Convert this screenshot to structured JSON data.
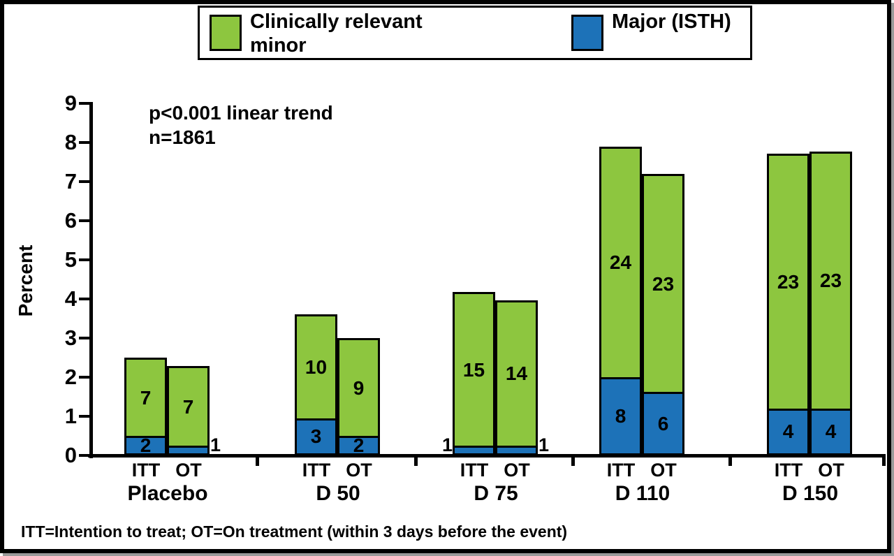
{
  "legend": {
    "minor_label": "Clinically relevant\nminor",
    "major_label": "Major (ISTH)"
  },
  "colors": {
    "minor_green": "#8DC63F",
    "major_blue": "#1D72B8",
    "axis_black": "#000000"
  },
  "annotation": {
    "line1": "p<0.001 linear trend",
    "line2": "n=1861"
  },
  "y_axis": {
    "label": "Percent",
    "ticks": [
      "0",
      "1",
      "2",
      "3",
      "4",
      "5",
      "6",
      "7",
      "8",
      "9"
    ]
  },
  "footnote": "ITT=Intention to treat; OT=On treatment (within 3 days before the event)",
  "chart_data": {
    "type": "bar",
    "stacked": true,
    "title": "",
    "xlabel": "",
    "ylabel": "Percent",
    "ylim": [
      0,
      9
    ],
    "grid": false,
    "legend_position": "top",
    "series": [
      {
        "name": "Major (ISTH)",
        "color": "#1D72B8"
      },
      {
        "name": "Clinically relevant minor",
        "color": "#8DC63F"
      }
    ],
    "annotations": [
      "p<0.001 linear trend",
      "n=1861"
    ],
    "groups": [
      {
        "label": "Placebo",
        "bars": [
          {
            "sublabel": "ITT",
            "major_pct": 0.5,
            "total_pct": 2.5,
            "major_count": "2",
            "minor_count": "7",
            "major_count_pos": "inside"
          },
          {
            "sublabel": "OT",
            "major_pct": 0.25,
            "total_pct": 2.28,
            "major_count": "1",
            "minor_count": "7",
            "major_count_pos": "right"
          }
        ]
      },
      {
        "label": "D 50",
        "bars": [
          {
            "sublabel": "ITT",
            "major_pct": 0.95,
            "total_pct": 3.6,
            "major_count": "3",
            "minor_count": "10",
            "major_count_pos": "inside"
          },
          {
            "sublabel": "OT",
            "major_pct": 0.5,
            "total_pct": 3.0,
            "major_count": "2",
            "minor_count": "9",
            "major_count_pos": "inside"
          }
        ]
      },
      {
        "label": "D 75",
        "bars": [
          {
            "sublabel": "ITT",
            "major_pct": 0.25,
            "total_pct": 4.17,
            "major_count": "1",
            "minor_count": "15",
            "major_count_pos": "left"
          },
          {
            "sublabel": "OT",
            "major_pct": 0.25,
            "total_pct": 3.97,
            "major_count": "1",
            "minor_count": "14",
            "major_count_pos": "right"
          }
        ]
      },
      {
        "label": "D 110",
        "bars": [
          {
            "sublabel": "ITT",
            "major_pct": 2.0,
            "total_pct": 7.9,
            "major_count": "8",
            "minor_count": "24",
            "major_count_pos": "inside"
          },
          {
            "sublabel": "OT",
            "major_pct": 1.62,
            "total_pct": 7.2,
            "major_count": "6",
            "minor_count": "23",
            "major_count_pos": "inside"
          }
        ]
      },
      {
        "label": "D 150",
        "bars": [
          {
            "sublabel": "ITT",
            "major_pct": 1.2,
            "total_pct": 7.72,
            "major_count": "4",
            "minor_count": "23",
            "major_count_pos": "inside"
          },
          {
            "sublabel": "OT",
            "major_pct": 1.2,
            "total_pct": 7.77,
            "major_count": "4",
            "minor_count": "23",
            "major_count_pos": "inside"
          }
        ]
      }
    ]
  }
}
